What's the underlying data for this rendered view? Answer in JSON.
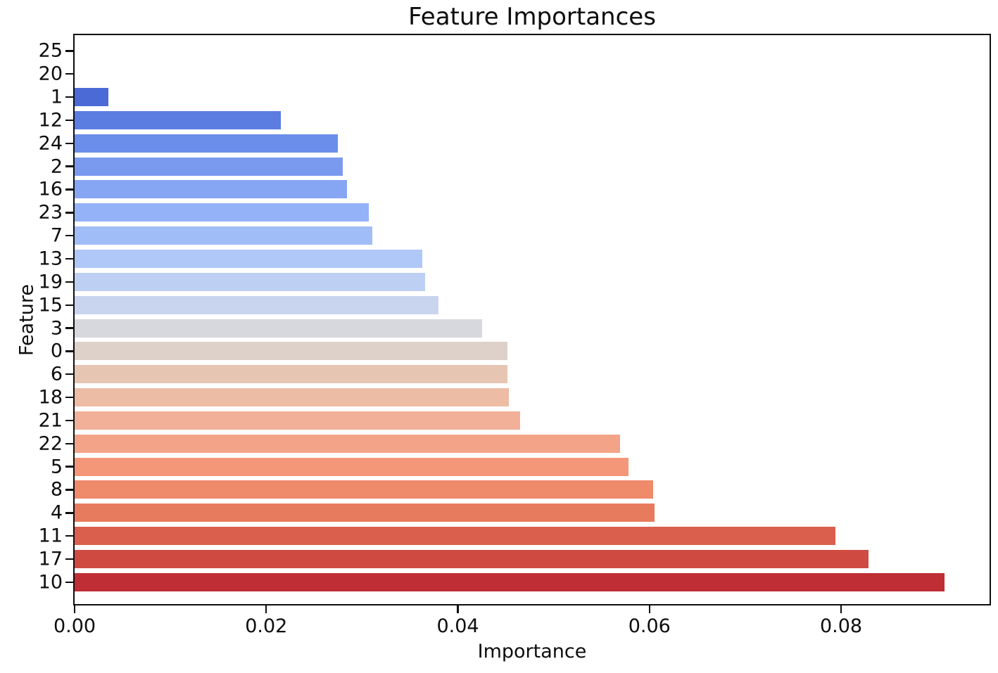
{
  "chart_data": {
    "type": "bar",
    "orientation": "horizontal",
    "title": "Feature Importances",
    "xlabel": "Importance",
    "ylabel": "Feature",
    "xlim": [
      0,
      0.0955
    ],
    "grid": false,
    "legend": null,
    "x_ticks": [
      {
        "value": 0.0,
        "label": "0.00"
      },
      {
        "value": 0.02,
        "label": "0.02"
      },
      {
        "value": 0.04,
        "label": "0.04"
      },
      {
        "value": 0.06,
        "label": "0.06"
      },
      {
        "value": 0.08,
        "label": "0.08"
      }
    ],
    "categories": [
      "25",
      "20",
      "1",
      "12",
      "24",
      "2",
      "16",
      "23",
      "7",
      "13",
      "19",
      "15",
      "3",
      "0",
      "6",
      "18",
      "21",
      "22",
      "5",
      "8",
      "4",
      "11",
      "17",
      "10"
    ],
    "values": [
      0.0,
      0.0,
      0.0035,
      0.0215,
      0.0275,
      0.028,
      0.0284,
      0.0307,
      0.0311,
      0.0363,
      0.0366,
      0.038,
      0.0425,
      0.0452,
      0.0452,
      0.0453,
      0.0465,
      0.0569,
      0.0578,
      0.0604,
      0.0605,
      0.0794,
      0.0829,
      0.0908
    ],
    "colors": [
      "#3b4cc0",
      "#4560ce",
      "#4b6ad5",
      "#5b7de2",
      "#6b8eea",
      "#7a9aef",
      "#86a5f3",
      "#94b2f7",
      "#a1bdf8",
      "#afc8f7",
      "#bdd0f3",
      "#c9d5ee",
      "#d7d7de",
      "#ded1c9",
      "#e6c5b2",
      "#edbca4",
      "#f1b097",
      "#f3a488",
      "#f39778",
      "#ef8a6b",
      "#e77b5d",
      "#da604d",
      "#cf4b42",
      "#be2e34"
    ],
    "colormap": "coolwarm",
    "tick_color": "#0d0d0d",
    "spine_color": "#0d0d0d"
  }
}
